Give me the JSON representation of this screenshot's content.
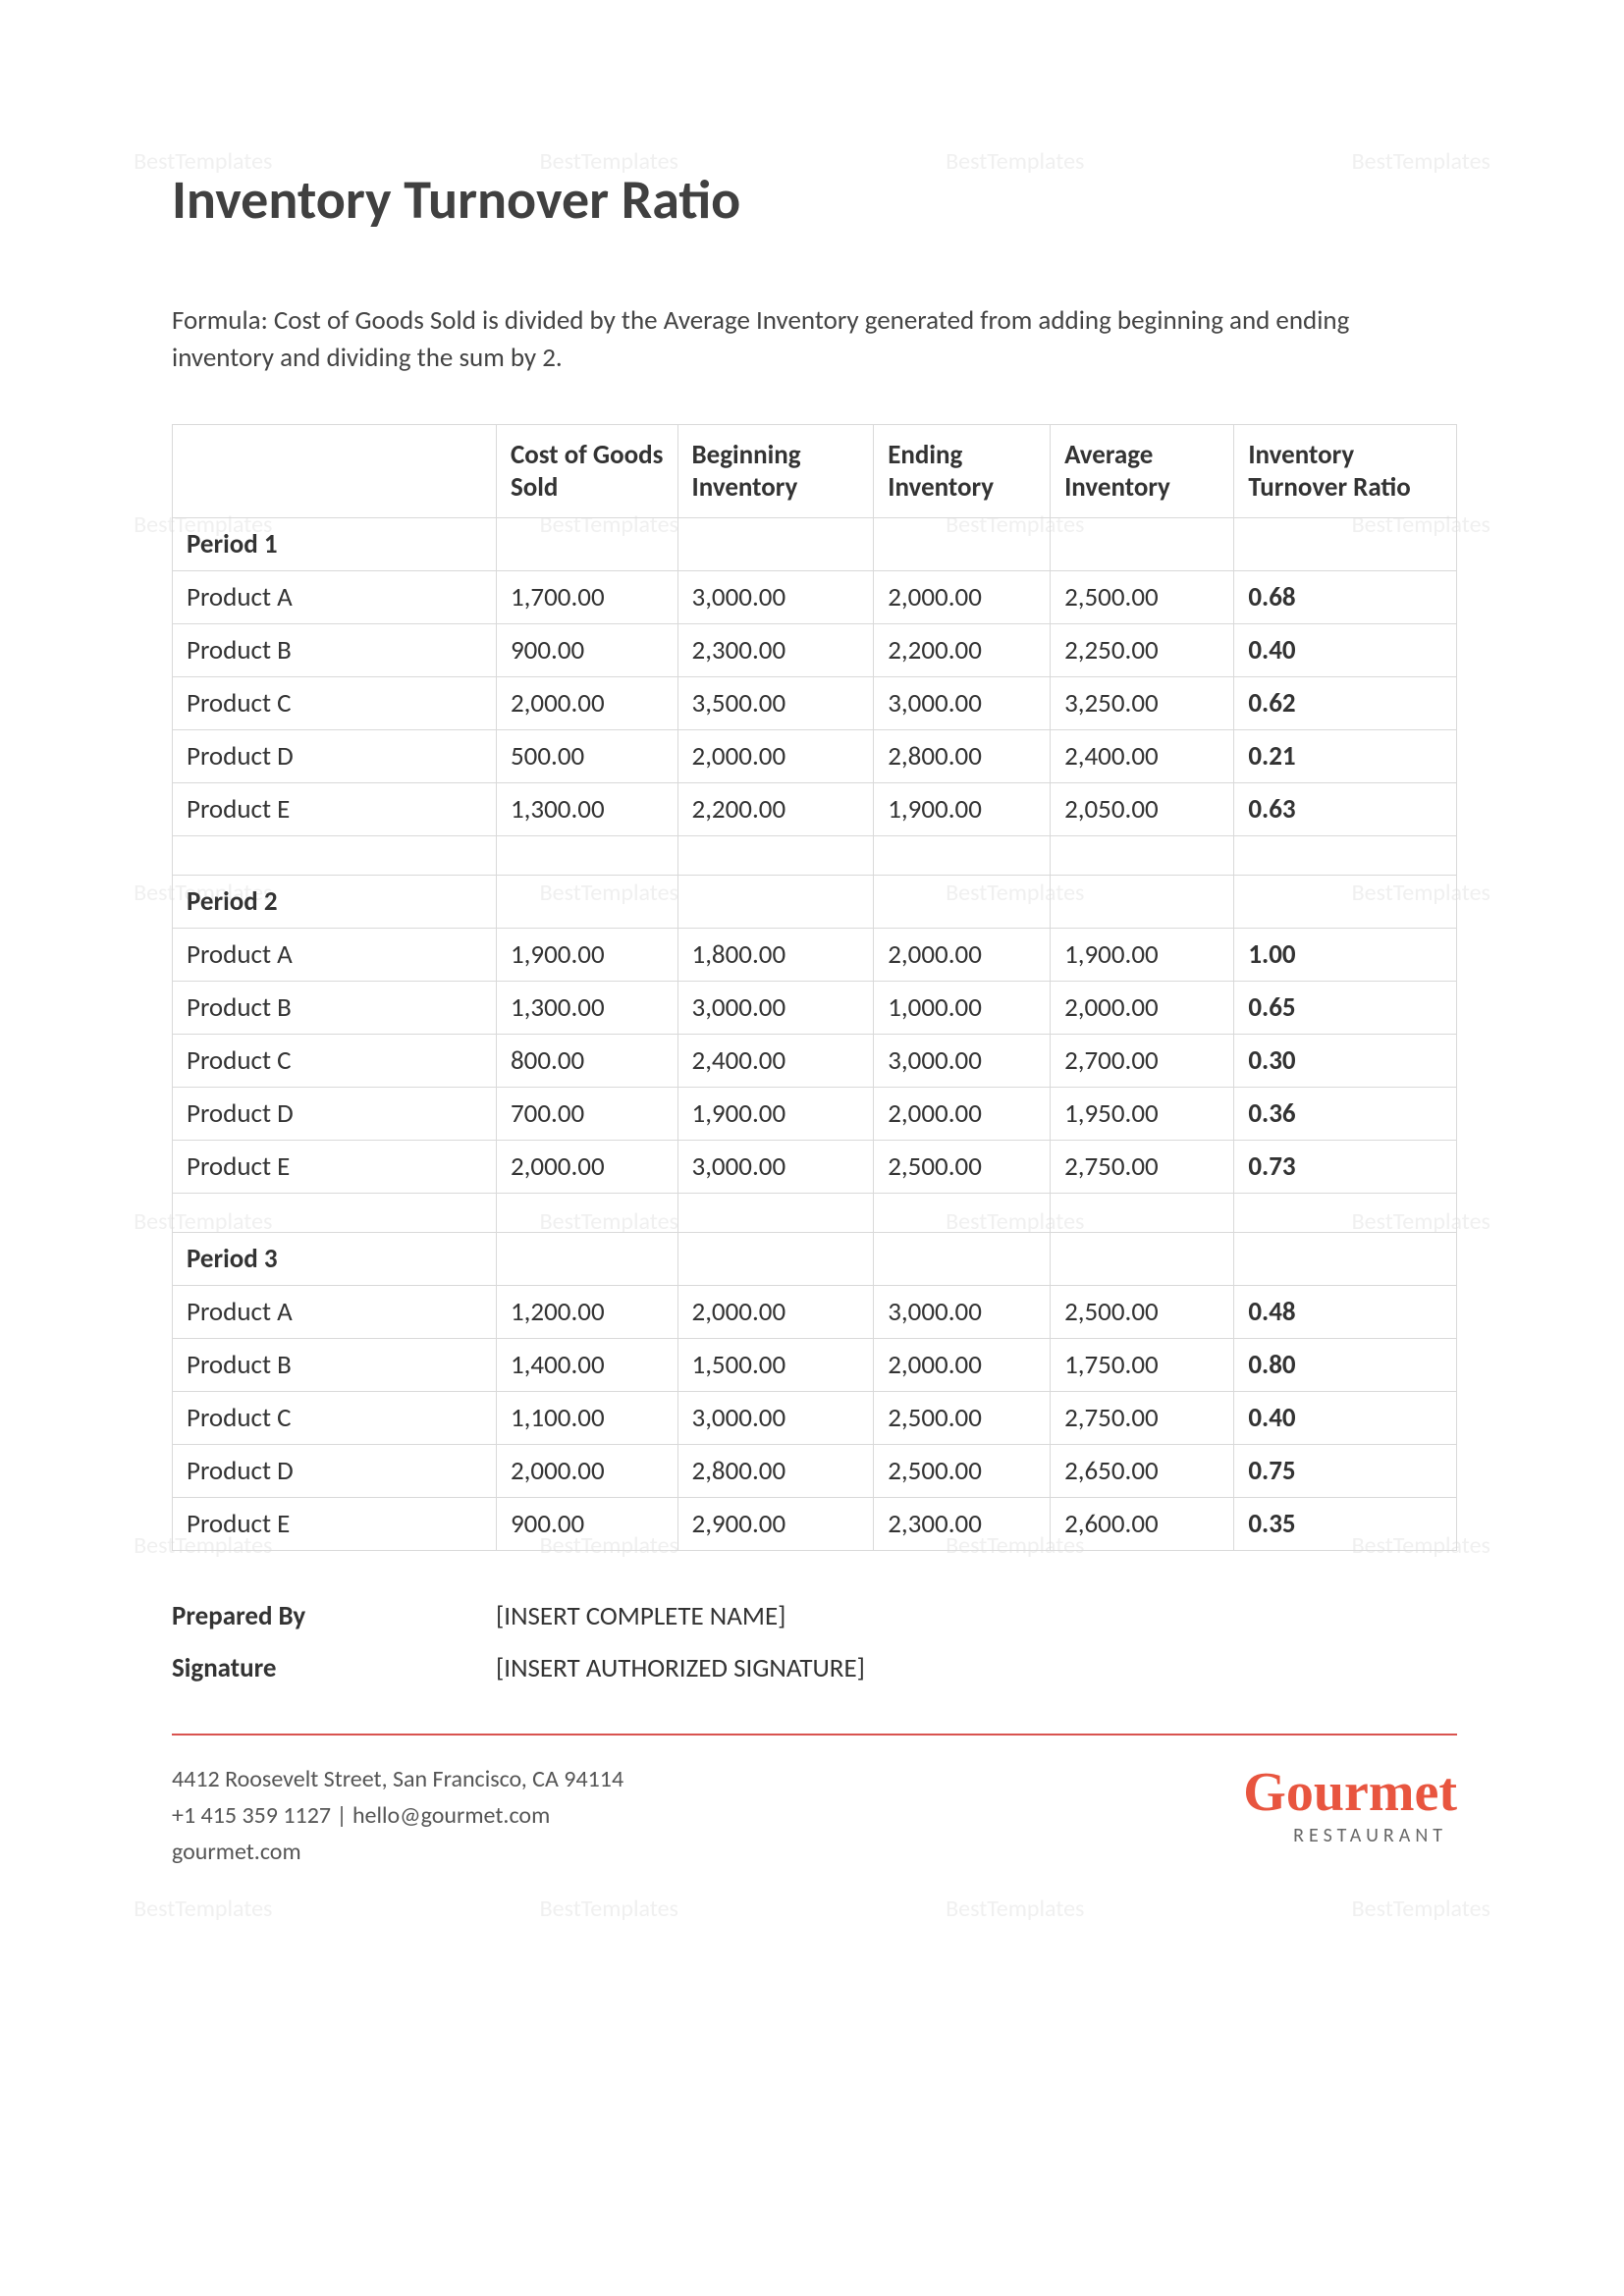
{
  "watermark_text": "BestTemplates",
  "title": "Inventory Turnover Ratio",
  "formula": "Formula: Cost of Goods Sold is divided by the Average Inventory generated from adding beginning and ending inventory and dividing the sum by 2.",
  "table": {
    "columns": [
      "",
      "Cost of Goods Sold",
      "Beginning Inventory",
      "Ending Inventory",
      "Average Inventory",
      "Inventory Turnover Ratio"
    ],
    "periods": [
      {
        "label": "Period 1",
        "rows": [
          {
            "product": "Product A",
            "cogs": "1,700.00",
            "begin": "3,000.00",
            "end": "2,000.00",
            "avg": "2,500.00",
            "ratio": "0.68"
          },
          {
            "product": "Product B",
            "cogs": "900.00",
            "begin": "2,300.00",
            "end": "2,200.00",
            "avg": "2,250.00",
            "ratio": "0.40"
          },
          {
            "product": "Product C",
            "cogs": "2,000.00",
            "begin": "3,500.00",
            "end": "3,000.00",
            "avg": "3,250.00",
            "ratio": "0.62"
          },
          {
            "product": "Product D",
            "cogs": "500.00",
            "begin": "2,000.00",
            "end": "2,800.00",
            "avg": "2,400.00",
            "ratio": "0.21"
          },
          {
            "product": "Product E",
            "cogs": "1,300.00",
            "begin": "2,200.00",
            "end": "1,900.00",
            "avg": "2,050.00",
            "ratio": "0.63"
          }
        ]
      },
      {
        "label": "Period 2",
        "rows": [
          {
            "product": "Product A",
            "cogs": "1,900.00",
            "begin": "1,800.00",
            "end": "2,000.00",
            "avg": "1,900.00",
            "ratio": "1.00"
          },
          {
            "product": "Product B",
            "cogs": "1,300.00",
            "begin": "3,000.00",
            "end": "1,000.00",
            "avg": "2,000.00",
            "ratio": "0.65"
          },
          {
            "product": "Product C",
            "cogs": "800.00",
            "begin": "2,400.00",
            "end": "3,000.00",
            "avg": "2,700.00",
            "ratio": "0.30"
          },
          {
            "product": "Product D",
            "cogs": "700.00",
            "begin": "1,900.00",
            "end": "2,000.00",
            "avg": "1,950.00",
            "ratio": "0.36"
          },
          {
            "product": "Product E",
            "cogs": "2,000.00",
            "begin": "3,000.00",
            "end": "2,500.00",
            "avg": "2,750.00",
            "ratio": "0.73"
          }
        ]
      },
      {
        "label": "Period 3",
        "rows": [
          {
            "product": "Product A",
            "cogs": "1,200.00",
            "begin": "2,000.00",
            "end": "3,000.00",
            "avg": "2,500.00",
            "ratio": "0.48"
          },
          {
            "product": "Product B",
            "cogs": "1,400.00",
            "begin": "1,500.00",
            "end": "2,000.00",
            "avg": "1,750.00",
            "ratio": "0.80"
          },
          {
            "product": "Product C",
            "cogs": "1,100.00",
            "begin": "3,000.00",
            "end": "2,500.00",
            "avg": "2,750.00",
            "ratio": "0.40"
          },
          {
            "product": "Product D",
            "cogs": "2,000.00",
            "begin": "2,800.00",
            "end": "2,500.00",
            "avg": "2,650.00",
            "ratio": "0.75"
          },
          {
            "product": "Product E",
            "cogs": "900.00",
            "begin": "2,900.00",
            "end": "2,300.00",
            "avg": "2,600.00",
            "ratio": "0.35"
          }
        ]
      }
    ]
  },
  "signature": {
    "prepared_by_label": "Prepared By",
    "prepared_by_value": "[INSERT COMPLETE NAME]",
    "signature_label": "Signature",
    "signature_value": "[INSERT AUTHORIZED SIGNATURE]"
  },
  "footer": {
    "address": "4412 Roosevelt Street, San Francisco, CA 94114",
    "contact": "+1 415 359 1127 | hello@gourmet.com",
    "website": "gourmet.com",
    "logo_main": "Gourmet",
    "logo_sub": "RESTAURANT"
  },
  "colors": {
    "accent": "#e8553f",
    "border": "#d9d9d9",
    "text": "#333333",
    "watermark": "#f0f0f0"
  }
}
